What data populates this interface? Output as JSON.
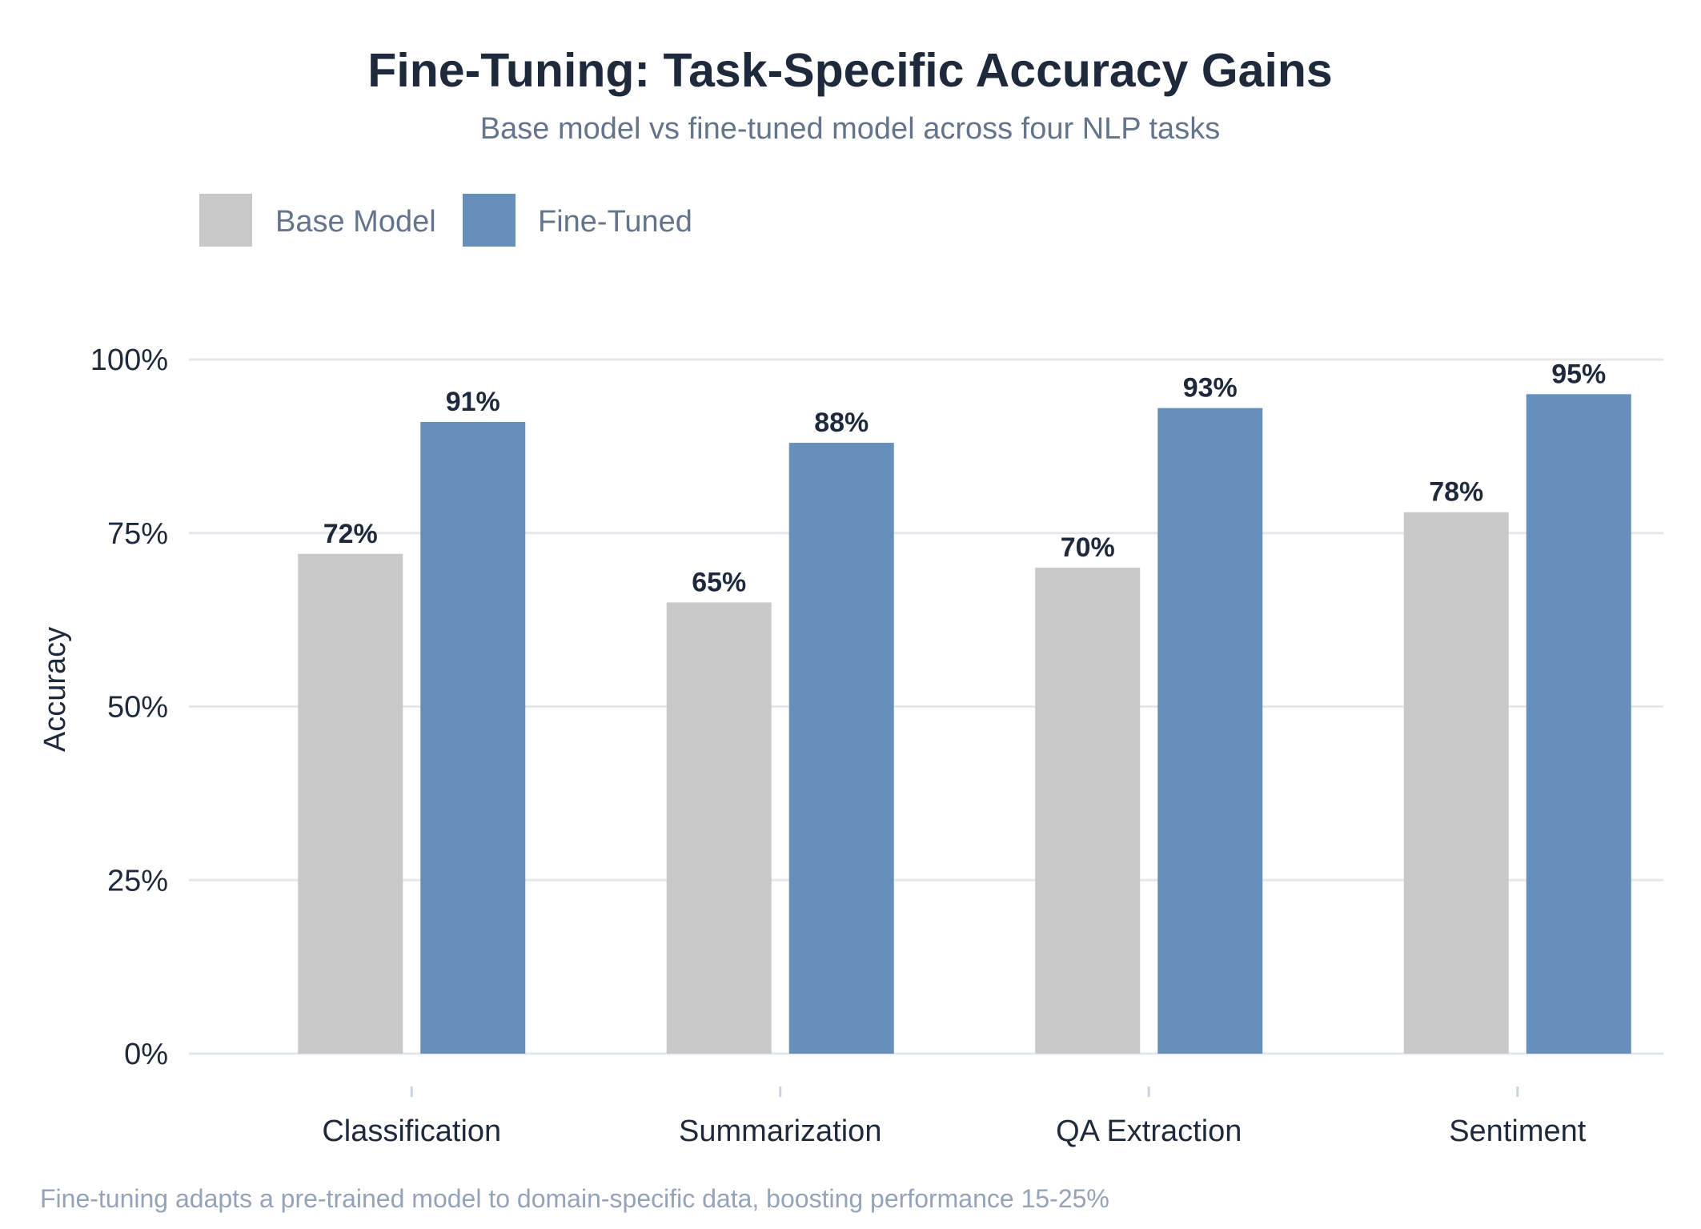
{
  "chart_data": {
    "type": "bar",
    "title": "Fine-Tuning: Task-Specific Accuracy Gains",
    "subtitle": "Base model vs fine-tuned model across four NLP tasks",
    "xlabel": "",
    "ylabel": "Accuracy",
    "categories": [
      "Classification",
      "Summarization",
      "QA Extraction",
      "Sentiment"
    ],
    "series": [
      {
        "name": "Base Model",
        "values": [
          72,
          65,
          70,
          78
        ],
        "color": "#c8c8c8"
      },
      {
        "name": "Fine-Tuned",
        "values": [
          91,
          88,
          93,
          95
        ],
        "color": "#6690bb"
      }
    ],
    "value_labels": {
      "Base Model": [
        "72%",
        "65%",
        "70%",
        "78%"
      ],
      "Fine-Tuned": [
        "91%",
        "88%",
        "93%",
        "95%"
      ]
    },
    "ylim": [
      0,
      100
    ],
    "yticks": [
      0,
      25,
      50,
      75,
      100
    ],
    "ytick_labels": [
      "0%",
      "25%",
      "50%",
      "75%",
      "100%"
    ],
    "grid": true,
    "legend_position": "top-left",
    "caption": "Fine-tuning adapts a pre-trained model to domain-specific data, boosting performance 15-25%"
  }
}
